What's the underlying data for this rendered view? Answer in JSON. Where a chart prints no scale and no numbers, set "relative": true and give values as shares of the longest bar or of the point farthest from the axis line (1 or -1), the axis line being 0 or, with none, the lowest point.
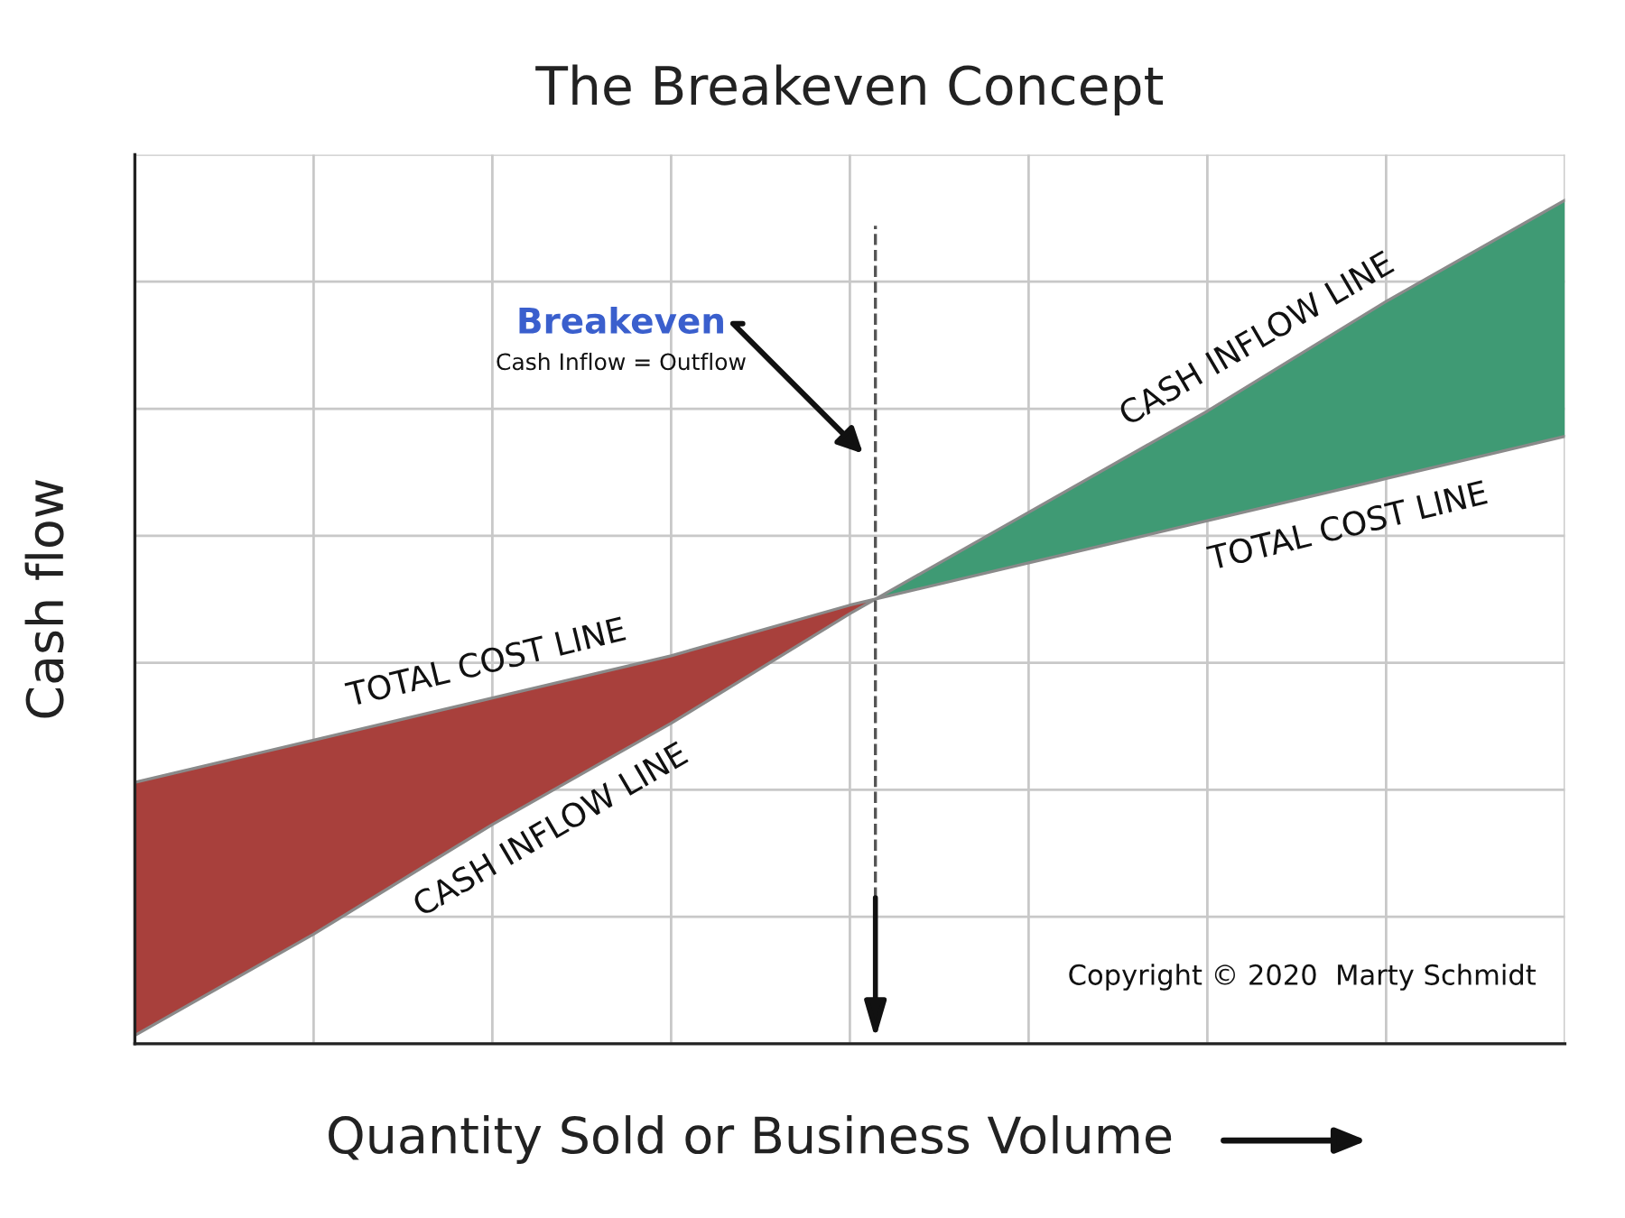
{
  "chart_data": {
    "type": "line",
    "title": "The Breakeven Concept",
    "xlabel": "Quantity Sold or Business Volume",
    "ylabel": "Cash flow",
    "relative": true,
    "categories": [
      null,
      null,
      null,
      null,
      null,
      null,
      null,
      null,
      null
    ],
    "series": [
      {
        "color": "#8a8a8a",
        "values": [
          0.31,
          0.36,
          0.41,
          0.46,
          0.52,
          0.57,
          0.62,
          0.67,
          0.72
        ]
      },
      {
        "color": "#8a8a8a",
        "values": [
          0.01,
          0.13,
          0.26,
          0.38,
          0.51,
          0.63,
          0.75,
          0.88,
          1.0
        ]
      }
    ],
    "colors": [
      "#a8403c",
      "#3f9a74"
    ],
    "annotations": [
      "Breakeven",
      "Cash Inflow = Outflow",
      "TOTAL COST LINE",
      "CASH INFLOW LINE",
      "CASH INFLOW LINE",
      "TOTAL COST LINE",
      "Copyright © 2020  Marty Schmidt"
    ],
    "grid": true,
    "legend": false
  }
}
